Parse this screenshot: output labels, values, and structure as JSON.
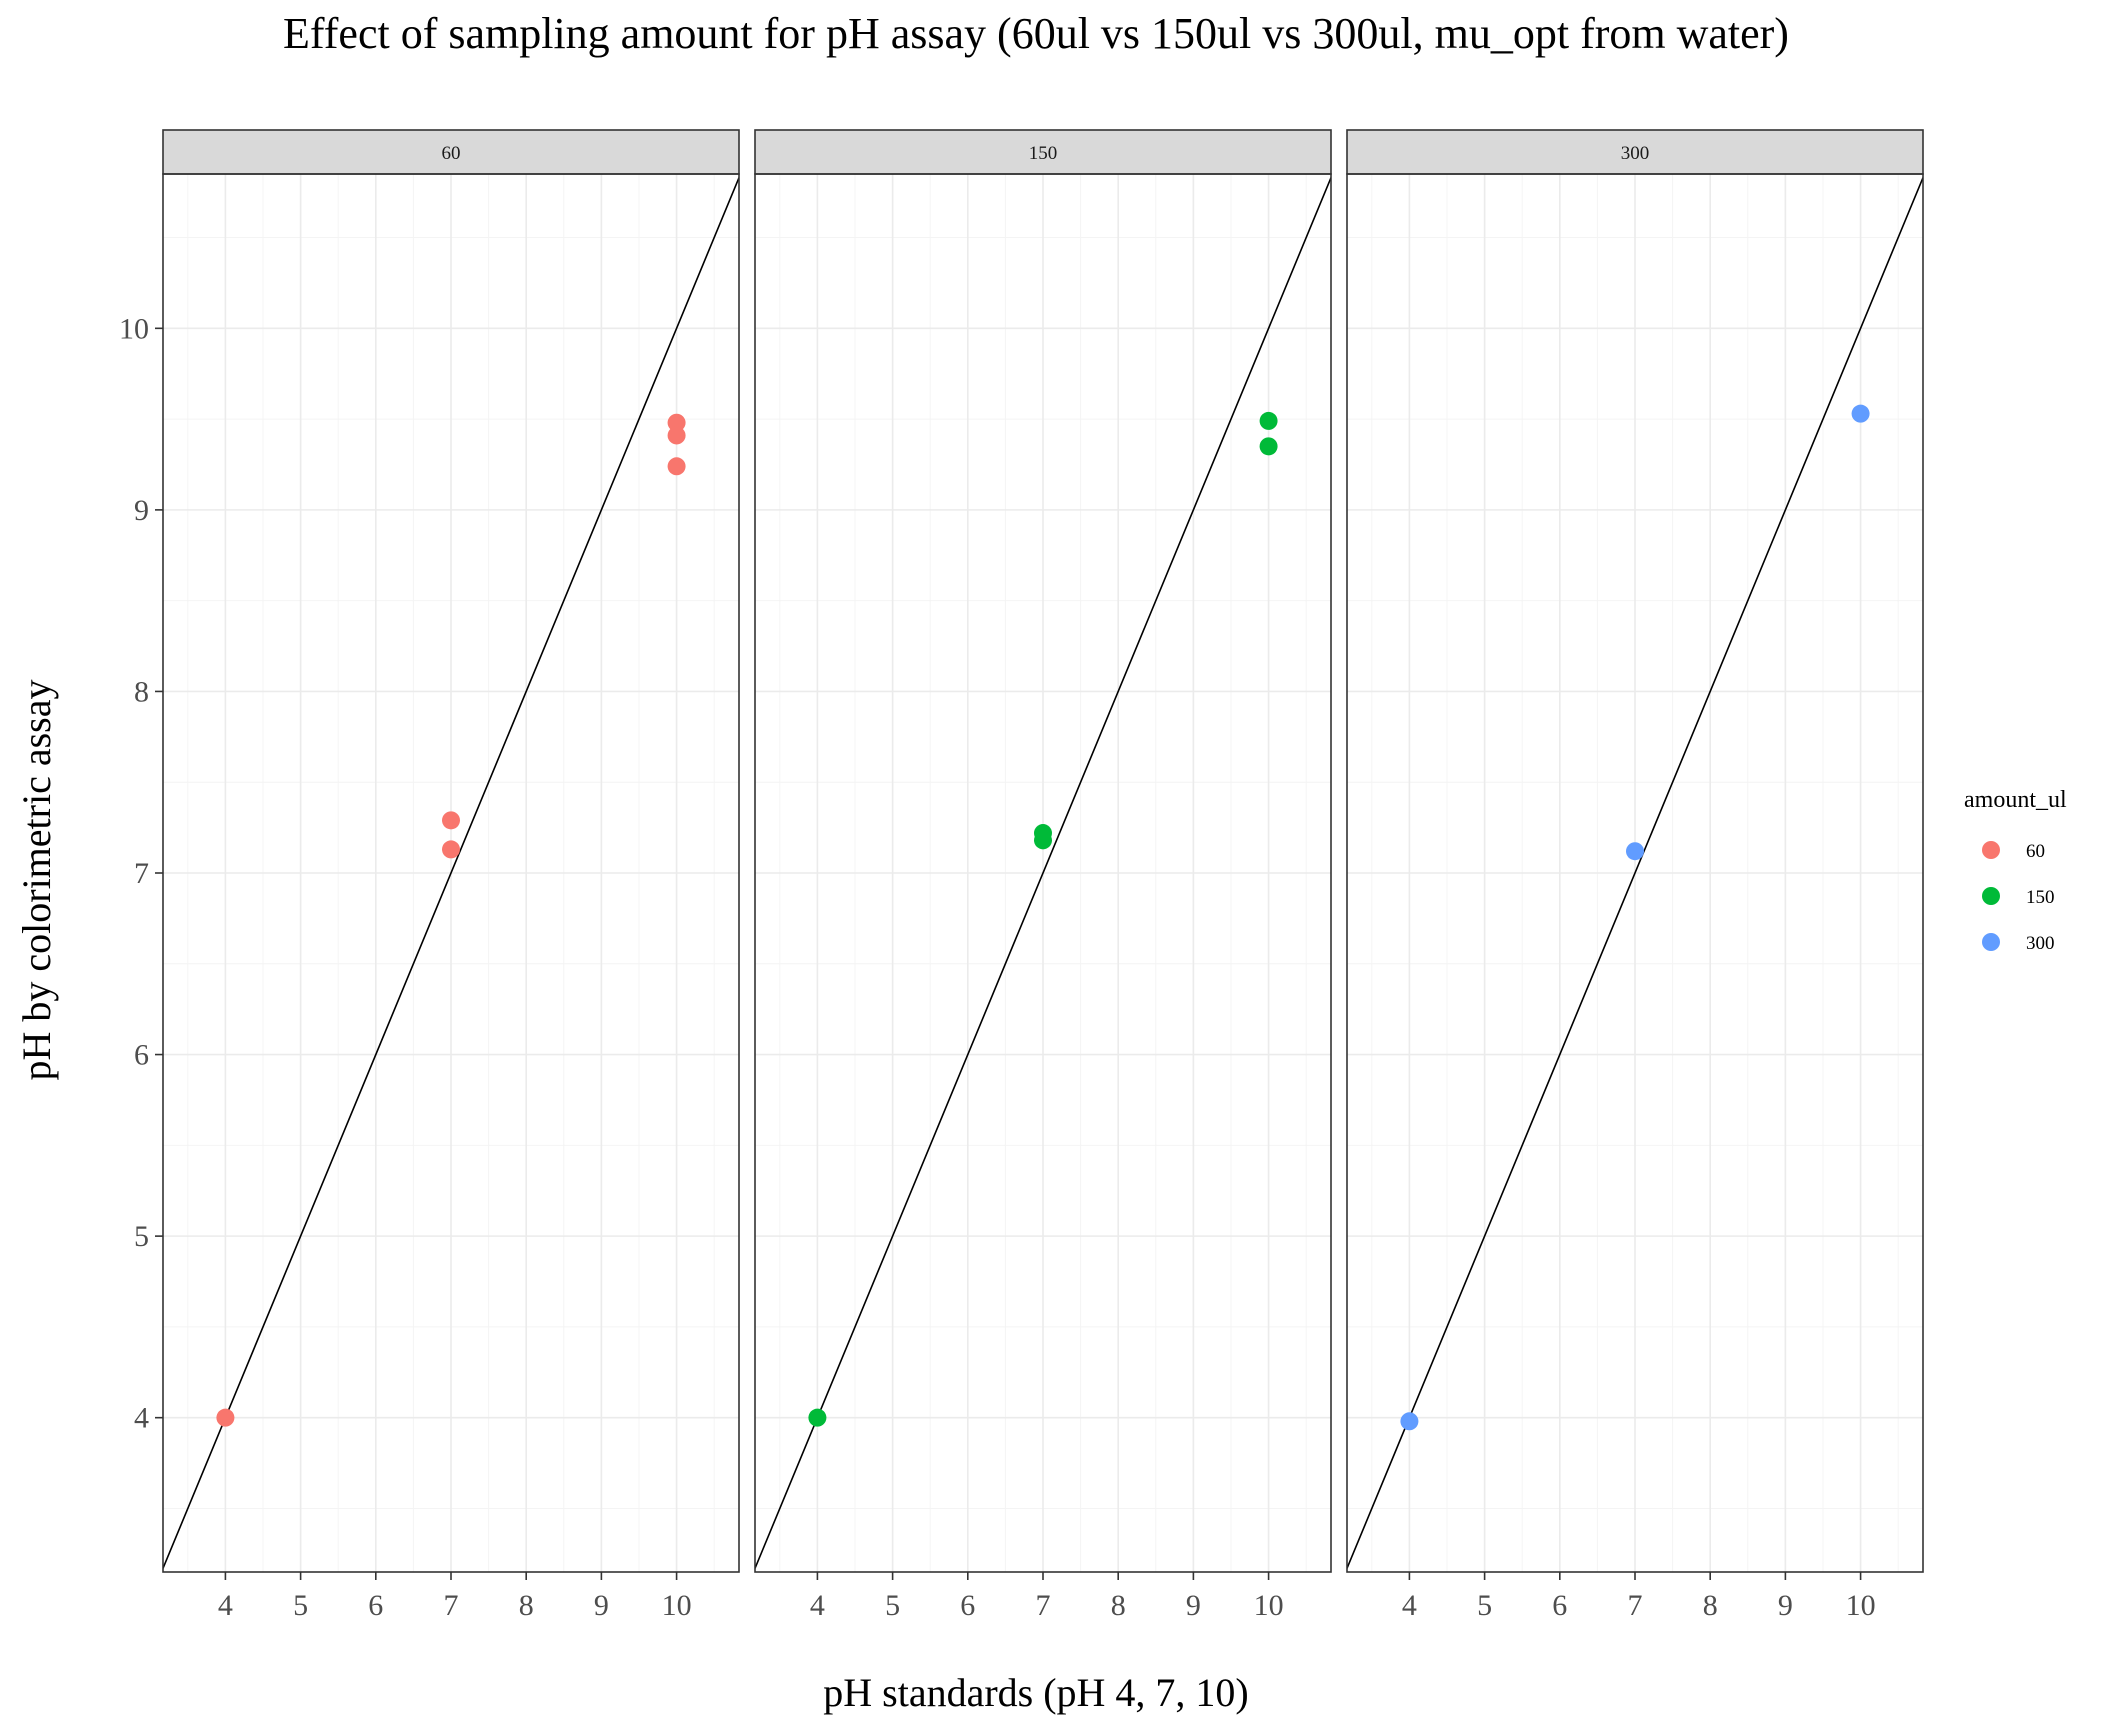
{
  "chart_data": {
    "type": "scatter",
    "title": "Effect of sampling amount for pH assay (60ul vs 150ul vs 300ul, mu_opt from water)",
    "xlabel": "pH standards (pH 4, 7, 10)",
    "ylabel": "pH by colorimetric assay",
    "xlim": [
      3.17,
      10.83
    ],
    "ylim": [
      3.15,
      10.85
    ],
    "x_ticks": [
      4,
      5,
      6,
      7,
      8,
      9,
      10
    ],
    "y_ticks": [
      4,
      5,
      6,
      7,
      8,
      9,
      10
    ],
    "grid": true,
    "reference_line": {
      "slope": 1,
      "intercept": 0
    },
    "legend": {
      "title": "amount_ul",
      "position": "right",
      "entries": [
        {
          "label": "60",
          "color": "#F8766D"
        },
        {
          "label": "150",
          "color": "#00BA38"
        },
        {
          "label": "300",
          "color": "#619CFF"
        }
      ]
    },
    "facets": [
      {
        "label": "60",
        "color": "#F8766D",
        "points": [
          {
            "x": 4,
            "y": 4.0
          },
          {
            "x": 7,
            "y": 7.29
          },
          {
            "x": 7,
            "y": 7.13
          },
          {
            "x": 10,
            "y": 9.48
          },
          {
            "x": 10,
            "y": 9.41
          },
          {
            "x": 10,
            "y": 9.24
          }
        ]
      },
      {
        "label": "150",
        "color": "#00BA38",
        "points": [
          {
            "x": 4,
            "y": 4.0
          },
          {
            "x": 7,
            "y": 7.22
          },
          {
            "x": 7,
            "y": 7.18
          },
          {
            "x": 10,
            "y": 9.49
          },
          {
            "x": 10,
            "y": 9.35
          }
        ]
      },
      {
        "label": "300",
        "color": "#619CFF",
        "points": [
          {
            "x": 4,
            "y": 3.98
          },
          {
            "x": 7,
            "y": 7.12
          },
          {
            "x": 10,
            "y": 9.53
          }
        ]
      }
    ]
  }
}
